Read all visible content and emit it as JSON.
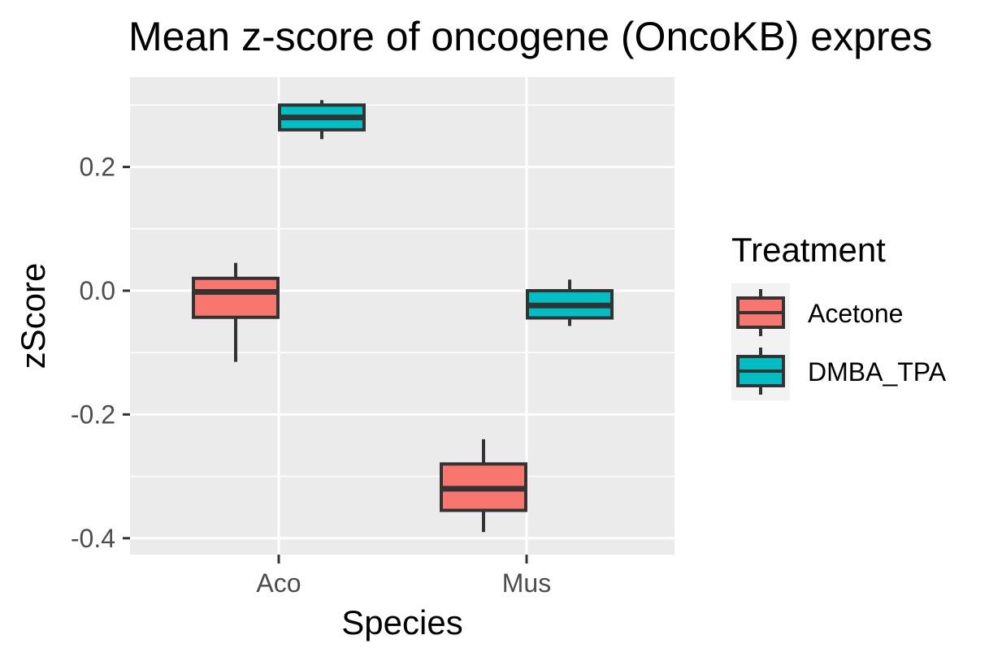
{
  "chart_data": {
    "type": "boxplot",
    "title": "Mean z-score of oncogene (OncoKB) expres",
    "xlabel": "Species",
    "ylabel": "zScore",
    "categories": [
      "Aco",
      "Mus"
    ],
    "ylim": [
      -0.42,
      0.35
    ],
    "yticks": [
      {
        "value": 0.2,
        "label": "0.2"
      },
      {
        "value": 0.0,
        "label": "0.0"
      },
      {
        "value": -0.2,
        "label": "-0.2"
      },
      {
        "value": -0.4,
        "label": "-0.4"
      }
    ],
    "grid": true,
    "legend": {
      "title": "Treatment",
      "placement": "right"
    },
    "series": [
      {
        "name": "Acetone",
        "color": "#F8766D",
        "boxes": [
          {
            "category": "Aco",
            "min": -0.115,
            "q1": -0.043,
            "median": -0.002,
            "q3": 0.02,
            "max": 0.045
          },
          {
            "category": "Mus",
            "min": -0.39,
            "q1": -0.355,
            "median": -0.32,
            "q3": -0.28,
            "max": -0.24
          }
        ]
      },
      {
        "name": "DMBA_TPA",
        "color": "#00BFC4",
        "boxes": [
          {
            "category": "Aco",
            "min": 0.245,
            "q1": 0.26,
            "median": 0.28,
            "q3": 0.3,
            "max": 0.308
          },
          {
            "category": "Mus",
            "min": -0.057,
            "q1": -0.044,
            "median": -0.024,
            "q3": 0.0,
            "max": 0.018
          }
        ]
      }
    ],
    "colors": {
      "panel_bg": "#EBEBEB",
      "grid": "#FFFFFF",
      "outline": "#333333",
      "tick": "#333333",
      "legend_key_bg": "#F2F2F2"
    }
  }
}
